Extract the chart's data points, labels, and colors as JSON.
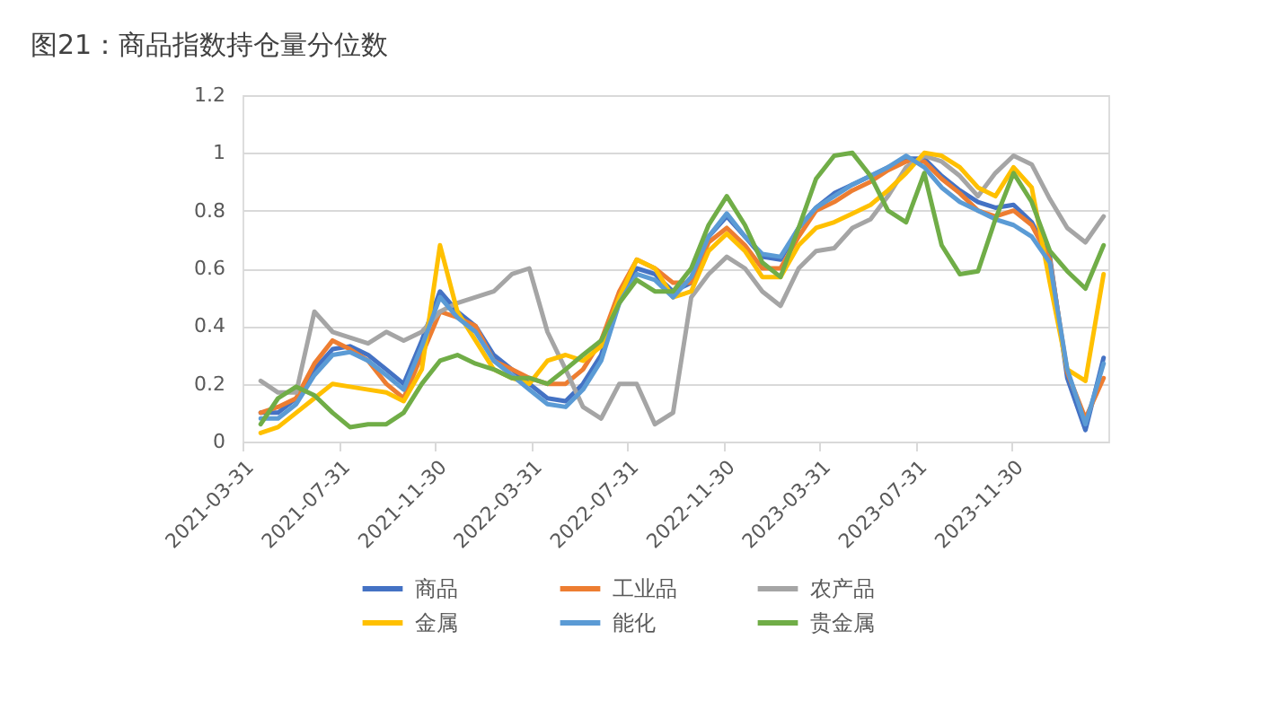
{
  "chart_data": {
    "type": "line",
    "title": "图21：商品指数持仓量分位数",
    "x": [
      "2021-04-23",
      "2021-05-15",
      "2021-06-07",
      "2021-06-30",
      "2021-07-23",
      "2021-08-14",
      "2021-09-06",
      "2021-09-29",
      "2021-10-21",
      "2021-11-13",
      "2021-12-06",
      "2021-12-28",
      "2022-01-20",
      "2022-02-12",
      "2022-03-07",
      "2022-03-29",
      "2022-04-21",
      "2022-05-14",
      "2022-06-05",
      "2022-06-28",
      "2022-07-21",
      "2022-08-12",
      "2022-09-04",
      "2022-09-27",
      "2022-10-20",
      "2022-11-11",
      "2022-12-04",
      "2022-12-27",
      "2023-01-18",
      "2023-02-10",
      "2023-03-05",
      "2023-03-27",
      "2023-04-19",
      "2023-05-12",
      "2023-06-04",
      "2023-06-26",
      "2023-07-19",
      "2023-08-11",
      "2023-09-02",
      "2023-09-25",
      "2023-10-18",
      "2023-11-09",
      "2023-12-02",
      "2023-12-25",
      "2024-01-17",
      "2024-02-08",
      "2024-03-02",
      "2024-03-25"
    ],
    "series": [
      {
        "name": "商品",
        "color": "#4472c4",
        "values": [
          0.1,
          0.1,
          0.15,
          0.25,
          0.32,
          0.33,
          0.3,
          0.25,
          0.2,
          0.35,
          0.52,
          0.45,
          0.4,
          0.3,
          0.25,
          0.2,
          0.15,
          0.14,
          0.2,
          0.3,
          0.5,
          0.6,
          0.58,
          0.52,
          0.55,
          0.71,
          0.78,
          0.71,
          0.64,
          0.63,
          0.74,
          0.81,
          0.86,
          0.89,
          0.92,
          0.95,
          0.98,
          0.98,
          0.92,
          0.87,
          0.83,
          0.81,
          0.82,
          0.76,
          0.64,
          0.22,
          0.04,
          0.29
        ]
      },
      {
        "name": "工业品",
        "color": "#ed7d31",
        "values": [
          0.1,
          0.12,
          0.15,
          0.27,
          0.35,
          0.32,
          0.28,
          0.2,
          0.15,
          0.3,
          0.45,
          0.43,
          0.4,
          0.28,
          0.25,
          0.22,
          0.2,
          0.2,
          0.25,
          0.35,
          0.52,
          0.63,
          0.6,
          0.55,
          0.55,
          0.69,
          0.74,
          0.68,
          0.6,
          0.6,
          0.71,
          0.8,
          0.83,
          0.87,
          0.9,
          0.94,
          0.97,
          0.97,
          0.91,
          0.86,
          0.8,
          0.78,
          0.8,
          0.75,
          0.63,
          0.24,
          0.08,
          0.22
        ]
      },
      {
        "name": "农产品",
        "color": "#a5a5a5",
        "values": [
          0.21,
          0.17,
          0.17,
          0.45,
          0.38,
          0.36,
          0.34,
          0.38,
          0.35,
          0.38,
          0.45,
          0.48,
          0.5,
          0.52,
          0.58,
          0.6,
          0.38,
          0.25,
          0.12,
          0.08,
          0.2,
          0.2,
          0.06,
          0.1,
          0.5,
          0.58,
          0.64,
          0.6,
          0.52,
          0.47,
          0.6,
          0.66,
          0.67,
          0.74,
          0.77,
          0.85,
          0.95,
          0.99,
          0.97,
          0.92,
          0.85,
          0.93,
          0.99,
          0.96,
          0.84,
          0.74,
          0.69,
          0.78
        ]
      },
      {
        "name": "金属",
        "color": "#ffc000",
        "values": [
          0.03,
          0.05,
          0.1,
          0.15,
          0.2,
          0.19,
          0.18,
          0.17,
          0.14,
          0.25,
          0.68,
          0.45,
          0.35,
          0.25,
          0.22,
          0.2,
          0.28,
          0.3,
          0.28,
          0.33,
          0.5,
          0.63,
          0.6,
          0.5,
          0.52,
          0.66,
          0.72,
          0.66,
          0.57,
          0.57,
          0.68,
          0.74,
          0.76,
          0.79,
          0.82,
          0.87,
          0.93,
          1.0,
          0.99,
          0.95,
          0.88,
          0.85,
          0.95,
          0.88,
          0.55,
          0.25,
          0.21,
          0.58
        ]
      },
      {
        "name": "能化",
        "color": "#5b9bd5",
        "values": [
          0.08,
          0.08,
          0.13,
          0.23,
          0.3,
          0.31,
          0.28,
          0.23,
          0.18,
          0.33,
          0.5,
          0.43,
          0.38,
          0.28,
          0.23,
          0.18,
          0.13,
          0.12,
          0.18,
          0.28,
          0.48,
          0.58,
          0.56,
          0.5,
          0.57,
          0.71,
          0.79,
          0.71,
          0.65,
          0.64,
          0.74,
          0.81,
          0.85,
          0.89,
          0.92,
          0.95,
          0.99,
          0.95,
          0.88,
          0.83,
          0.8,
          0.77,
          0.75,
          0.71,
          0.62,
          0.25,
          0.06,
          0.27
        ]
      },
      {
        "name": "贵金属",
        "color": "#70ad47",
        "values": [
          0.06,
          0.15,
          0.19,
          0.16,
          0.1,
          0.05,
          0.06,
          0.06,
          0.1,
          0.2,
          0.28,
          0.3,
          0.27,
          0.25,
          0.22,
          0.22,
          0.2,
          0.25,
          0.3,
          0.35,
          0.48,
          0.56,
          0.52,
          0.52,
          0.6,
          0.75,
          0.85,
          0.75,
          0.62,
          0.57,
          0.74,
          0.91,
          0.99,
          1.0,
          0.92,
          0.8,
          0.76,
          0.93,
          0.68,
          0.58,
          0.59,
          0.77,
          0.93,
          0.83,
          0.66,
          0.59,
          0.53,
          0.68
        ]
      }
    ],
    "xlim": [
      "2021-03-31",
      "2024-03-31"
    ],
    "xticks": [
      "2021-03-31",
      "2021-07-31",
      "2021-11-30",
      "2022-03-31",
      "2022-07-31",
      "2022-11-30",
      "2023-03-31",
      "2023-07-31",
      "2023-11-30"
    ],
    "ylim": [
      0,
      1.2
    ],
    "yticks": [
      0,
      0.2,
      0.4,
      0.6,
      0.8,
      1,
      1.2
    ],
    "grid": "y",
    "legend": "bottom"
  }
}
